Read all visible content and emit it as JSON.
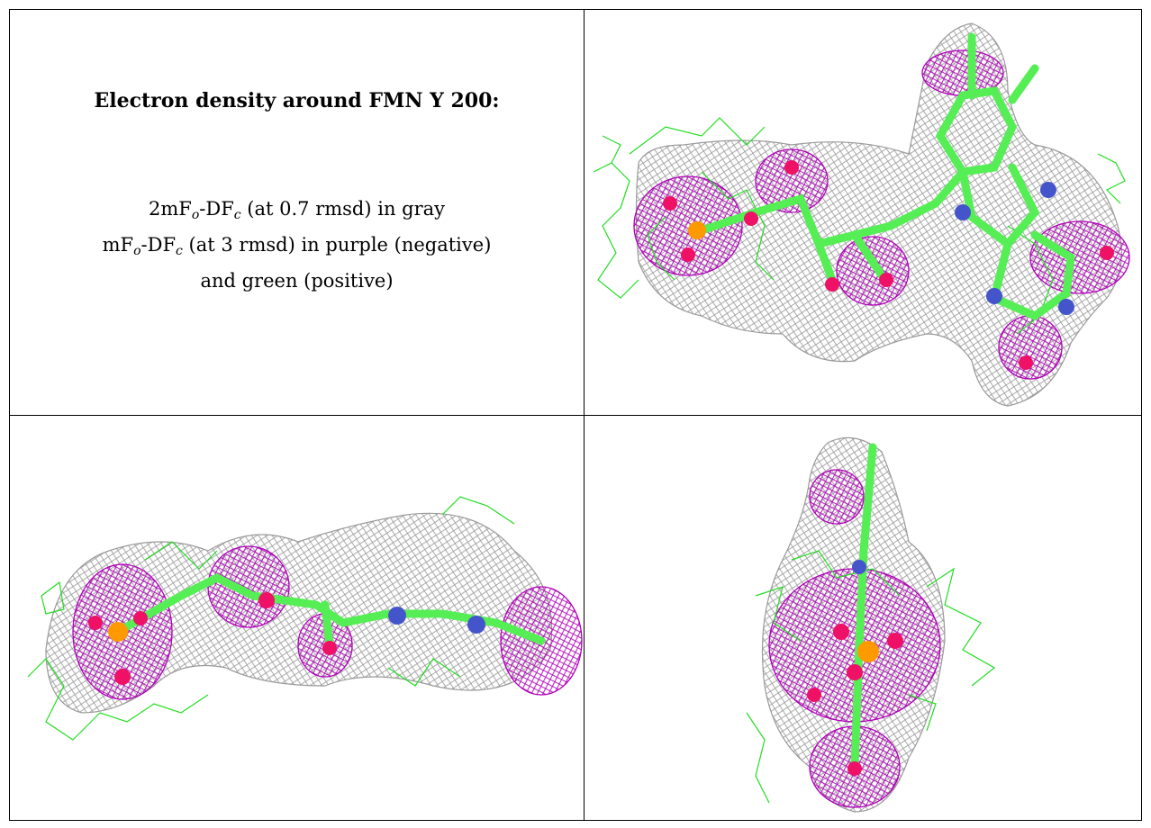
{
  "caption": {
    "title": "Electron density around FMN Y 200:",
    "line1": {
      "pre": "2mF",
      "sub_o": "o",
      "mid": "-DF",
      "sub_c": "c",
      "post": " (at 0.7 rmsd) in gray"
    },
    "line2": {
      "pre": "mF",
      "sub_o": "o",
      "mid": "-DF",
      "sub_c": "c",
      "post": " (at 3 rmsd) in purple (negative)"
    },
    "line3": "and green (positive)"
  },
  "colors": {
    "mesh_2fofc": "#9a9a9a",
    "mesh_negative": "#b000b8",
    "mesh_positive": "#22dd22",
    "carbon": "#55ee55",
    "oxygen": "#ee1166",
    "nitrogen": "#4455cc",
    "phosphorus": "#ff9900"
  },
  "panels": [
    {
      "id": "top-right",
      "view": "flat ring view"
    },
    {
      "id": "bottom-left",
      "view": "side view"
    },
    {
      "id": "bottom-right",
      "view": "end-on view"
    }
  ]
}
